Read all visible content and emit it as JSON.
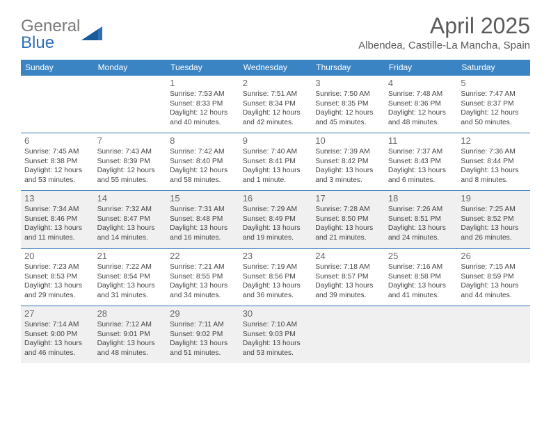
{
  "logo": {
    "text_gray": "General",
    "text_blue": "Blue"
  },
  "title": {
    "month": "April 2025",
    "location": "Albendea, Castille-La Mancha, Spain"
  },
  "colors": {
    "header_bg": "#3b84c4",
    "header_text": "#ffffff",
    "divider": "#2d6fb5",
    "shade_bg": "#f0f0f0",
    "daynum_text": "#6a6a6a",
    "body_text": "#444444",
    "title_text": "#5a5a5a"
  },
  "day_names": [
    "Sunday",
    "Monday",
    "Tuesday",
    "Wednesday",
    "Thursday",
    "Friday",
    "Saturday"
  ],
  "weeks": [
    {
      "shaded": false,
      "cells": [
        {
          "empty": true
        },
        {
          "empty": true
        },
        {
          "day": "1",
          "sunrise": "Sunrise: 7:53 AM",
          "sunset": "Sunset: 8:33 PM",
          "daylight1": "Daylight: 12 hours",
          "daylight2": "and 40 minutes."
        },
        {
          "day": "2",
          "sunrise": "Sunrise: 7:51 AM",
          "sunset": "Sunset: 8:34 PM",
          "daylight1": "Daylight: 12 hours",
          "daylight2": "and 42 minutes."
        },
        {
          "day": "3",
          "sunrise": "Sunrise: 7:50 AM",
          "sunset": "Sunset: 8:35 PM",
          "daylight1": "Daylight: 12 hours",
          "daylight2": "and 45 minutes."
        },
        {
          "day": "4",
          "sunrise": "Sunrise: 7:48 AM",
          "sunset": "Sunset: 8:36 PM",
          "daylight1": "Daylight: 12 hours",
          "daylight2": "and 48 minutes."
        },
        {
          "day": "5",
          "sunrise": "Sunrise: 7:47 AM",
          "sunset": "Sunset: 8:37 PM",
          "daylight1": "Daylight: 12 hours",
          "daylight2": "and 50 minutes."
        }
      ]
    },
    {
      "shaded": false,
      "cells": [
        {
          "day": "6",
          "sunrise": "Sunrise: 7:45 AM",
          "sunset": "Sunset: 8:38 PM",
          "daylight1": "Daylight: 12 hours",
          "daylight2": "and 53 minutes."
        },
        {
          "day": "7",
          "sunrise": "Sunrise: 7:43 AM",
          "sunset": "Sunset: 8:39 PM",
          "daylight1": "Daylight: 12 hours",
          "daylight2": "and 55 minutes."
        },
        {
          "day": "8",
          "sunrise": "Sunrise: 7:42 AM",
          "sunset": "Sunset: 8:40 PM",
          "daylight1": "Daylight: 12 hours",
          "daylight2": "and 58 minutes."
        },
        {
          "day": "9",
          "sunrise": "Sunrise: 7:40 AM",
          "sunset": "Sunset: 8:41 PM",
          "daylight1": "Daylight: 13 hours",
          "daylight2": "and 1 minute."
        },
        {
          "day": "10",
          "sunrise": "Sunrise: 7:39 AM",
          "sunset": "Sunset: 8:42 PM",
          "daylight1": "Daylight: 13 hours",
          "daylight2": "and 3 minutes."
        },
        {
          "day": "11",
          "sunrise": "Sunrise: 7:37 AM",
          "sunset": "Sunset: 8:43 PM",
          "daylight1": "Daylight: 13 hours",
          "daylight2": "and 6 minutes."
        },
        {
          "day": "12",
          "sunrise": "Sunrise: 7:36 AM",
          "sunset": "Sunset: 8:44 PM",
          "daylight1": "Daylight: 13 hours",
          "daylight2": "and 8 minutes."
        }
      ]
    },
    {
      "shaded": true,
      "cells": [
        {
          "day": "13",
          "sunrise": "Sunrise: 7:34 AM",
          "sunset": "Sunset: 8:46 PM",
          "daylight1": "Daylight: 13 hours",
          "daylight2": "and 11 minutes."
        },
        {
          "day": "14",
          "sunrise": "Sunrise: 7:32 AM",
          "sunset": "Sunset: 8:47 PM",
          "daylight1": "Daylight: 13 hours",
          "daylight2": "and 14 minutes."
        },
        {
          "day": "15",
          "sunrise": "Sunrise: 7:31 AM",
          "sunset": "Sunset: 8:48 PM",
          "daylight1": "Daylight: 13 hours",
          "daylight2": "and 16 minutes."
        },
        {
          "day": "16",
          "sunrise": "Sunrise: 7:29 AM",
          "sunset": "Sunset: 8:49 PM",
          "daylight1": "Daylight: 13 hours",
          "daylight2": "and 19 minutes."
        },
        {
          "day": "17",
          "sunrise": "Sunrise: 7:28 AM",
          "sunset": "Sunset: 8:50 PM",
          "daylight1": "Daylight: 13 hours",
          "daylight2": "and 21 minutes."
        },
        {
          "day": "18",
          "sunrise": "Sunrise: 7:26 AM",
          "sunset": "Sunset: 8:51 PM",
          "daylight1": "Daylight: 13 hours",
          "daylight2": "and 24 minutes."
        },
        {
          "day": "19",
          "sunrise": "Sunrise: 7:25 AM",
          "sunset": "Sunset: 8:52 PM",
          "daylight1": "Daylight: 13 hours",
          "daylight2": "and 26 minutes."
        }
      ]
    },
    {
      "shaded": false,
      "cells": [
        {
          "day": "20",
          "sunrise": "Sunrise: 7:23 AM",
          "sunset": "Sunset: 8:53 PM",
          "daylight1": "Daylight: 13 hours",
          "daylight2": "and 29 minutes."
        },
        {
          "day": "21",
          "sunrise": "Sunrise: 7:22 AM",
          "sunset": "Sunset: 8:54 PM",
          "daylight1": "Daylight: 13 hours",
          "daylight2": "and 31 minutes."
        },
        {
          "day": "22",
          "sunrise": "Sunrise: 7:21 AM",
          "sunset": "Sunset: 8:55 PM",
          "daylight1": "Daylight: 13 hours",
          "daylight2": "and 34 minutes."
        },
        {
          "day": "23",
          "sunrise": "Sunrise: 7:19 AM",
          "sunset": "Sunset: 8:56 PM",
          "daylight1": "Daylight: 13 hours",
          "daylight2": "and 36 minutes."
        },
        {
          "day": "24",
          "sunrise": "Sunrise: 7:18 AM",
          "sunset": "Sunset: 8:57 PM",
          "daylight1": "Daylight: 13 hours",
          "daylight2": "and 39 minutes."
        },
        {
          "day": "25",
          "sunrise": "Sunrise: 7:16 AM",
          "sunset": "Sunset: 8:58 PM",
          "daylight1": "Daylight: 13 hours",
          "daylight2": "and 41 minutes."
        },
        {
          "day": "26",
          "sunrise": "Sunrise: 7:15 AM",
          "sunset": "Sunset: 8:59 PM",
          "daylight1": "Daylight: 13 hours",
          "daylight2": "and 44 minutes."
        }
      ]
    },
    {
      "shaded": true,
      "cells": [
        {
          "day": "27",
          "sunrise": "Sunrise: 7:14 AM",
          "sunset": "Sunset: 9:00 PM",
          "daylight1": "Daylight: 13 hours",
          "daylight2": "and 46 minutes."
        },
        {
          "day": "28",
          "sunrise": "Sunrise: 7:12 AM",
          "sunset": "Sunset: 9:01 PM",
          "daylight1": "Daylight: 13 hours",
          "daylight2": "and 48 minutes."
        },
        {
          "day": "29",
          "sunrise": "Sunrise: 7:11 AM",
          "sunset": "Sunset: 9:02 PM",
          "daylight1": "Daylight: 13 hours",
          "daylight2": "and 51 minutes."
        },
        {
          "day": "30",
          "sunrise": "Sunrise: 7:10 AM",
          "sunset": "Sunset: 9:03 PM",
          "daylight1": "Daylight: 13 hours",
          "daylight2": "and 53 minutes."
        },
        {
          "empty": true
        },
        {
          "empty": true
        },
        {
          "empty": true
        }
      ]
    }
  ]
}
